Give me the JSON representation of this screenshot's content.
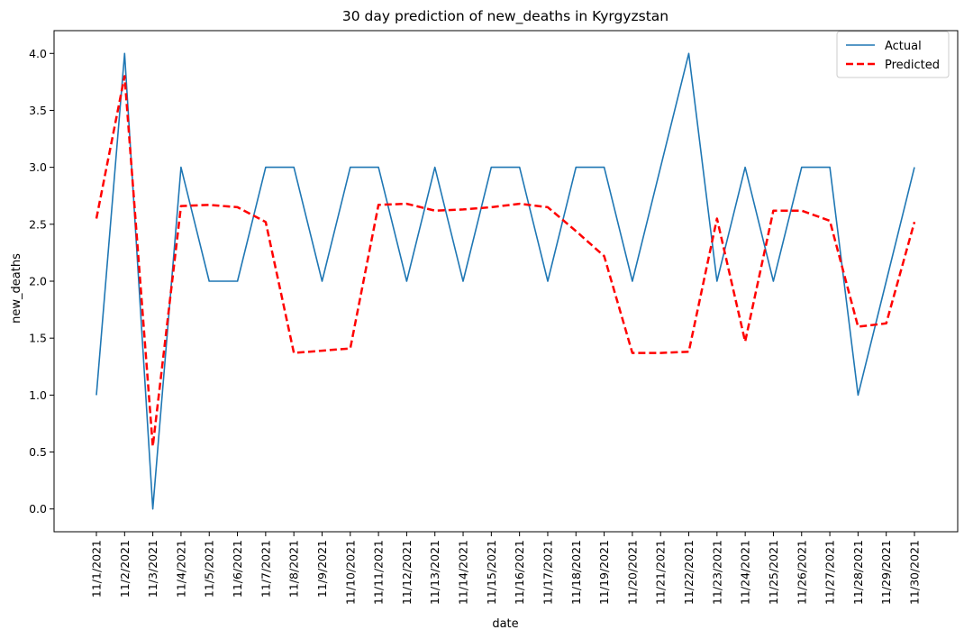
{
  "chart_data": {
    "type": "line",
    "title": "30 day prediction of new_deaths in Kyrgyzstan",
    "xlabel": "date",
    "ylabel": "new_deaths",
    "ylim": [
      -0.2,
      4.2
    ],
    "yticks": [
      "0.0",
      "0.5",
      "1.0",
      "1.5",
      "2.0",
      "2.5",
      "3.0",
      "3.5",
      "4.0"
    ],
    "grid": false,
    "legend_position": "top-right",
    "x": [
      "11/1/2021",
      "11/2/2021",
      "11/3/2021",
      "11/4/2021",
      "11/5/2021",
      "11/6/2021",
      "11/7/2021",
      "11/8/2021",
      "11/9/2021",
      "11/10/2021",
      "11/11/2021",
      "11/12/2021",
      "11/13/2021",
      "11/14/2021",
      "11/15/2021",
      "11/16/2021",
      "11/17/2021",
      "11/18/2021",
      "11/19/2021",
      "11/20/2021",
      "11/21/2021",
      "11/22/2021",
      "11/23/2021",
      "11/24/2021",
      "11/25/2021",
      "11/26/2021",
      "11/27/2021",
      "11/28/2021",
      "11/29/2021",
      "11/30/2021"
    ],
    "series": [
      {
        "name": "Actual",
        "color": "#1f77b4",
        "style": "solid",
        "values": [
          1,
          4,
          0,
          3,
          2,
          2,
          3,
          3,
          2,
          3,
          3,
          2,
          3,
          2,
          3,
          3,
          2,
          3,
          3,
          2,
          3,
          4,
          2,
          3,
          2,
          3,
          3,
          1,
          2,
          3
        ]
      },
      {
        "name": "Predicted",
        "color": "#ff0000",
        "style": "dashed",
        "values": [
          2.55,
          3.8,
          0.55,
          2.66,
          2.67,
          2.65,
          2.52,
          1.37,
          1.39,
          1.41,
          2.67,
          2.68,
          2.62,
          2.63,
          2.65,
          2.68,
          2.65,
          2.44,
          2.22,
          1.37,
          1.37,
          1.38,
          2.55,
          1.47,
          2.62,
          2.62,
          2.53,
          1.6,
          1.63,
          2.52
        ]
      }
    ]
  }
}
